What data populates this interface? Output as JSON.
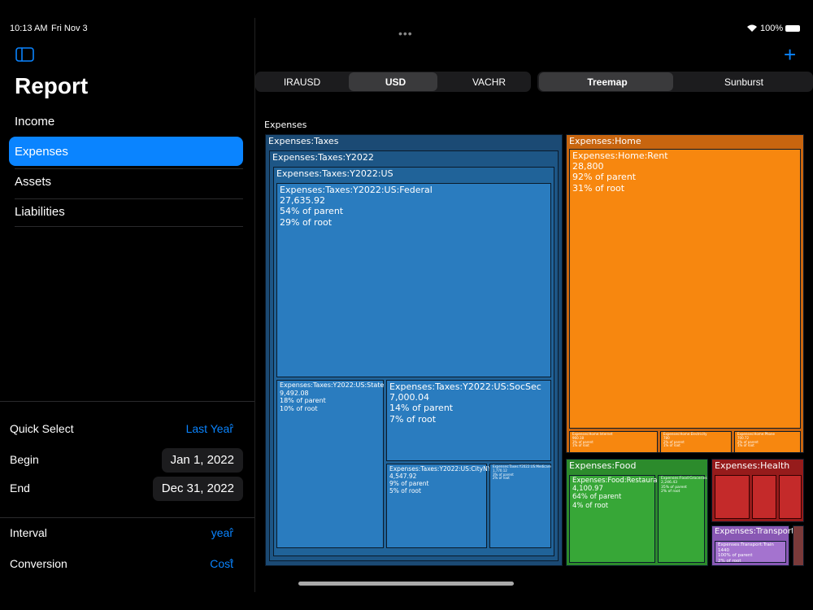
{
  "status": {
    "time": "10:13 AM",
    "date": "Fri Nov 3",
    "battery": "100%"
  },
  "sidebar": {
    "title": "Report",
    "items": [
      "Income",
      "Expenses",
      "Assets",
      "Liabilities"
    ],
    "settings": [
      {
        "label": "Quick Select",
        "value": "Last Year"
      },
      {
        "label": "Begin",
        "value": "Jan 1, 2022"
      },
      {
        "label": "End",
        "value": "Dec 31, 2022"
      },
      {
        "label": "Interval",
        "value": "year"
      },
      {
        "label": "Conversion",
        "value": "Cost"
      }
    ]
  },
  "currencies": [
    "IRAUSD",
    "USD",
    "VACHR"
  ],
  "views": [
    "Treemap",
    "Sunburst"
  ],
  "treemap": {
    "root": "Expenses",
    "nodes": [
      {
        "label": "Expenses:Taxes",
        "lines": []
      },
      {
        "label": "Expenses:Taxes:Y2022",
        "lines": []
      },
      {
        "label": "Expenses:Taxes:Y2022:US",
        "lines": []
      },
      {
        "label": "Expenses:Taxes:Y2022:US:Federal",
        "lines": [
          "27,635.92",
          "54% of parent",
          "29% of root"
        ]
      },
      {
        "label": "Expenses:Taxes:Y2022:US:State",
        "lines": [
          "9,492.08",
          "18% of parent",
          "10% of root"
        ]
      },
      {
        "label": "Expenses:Taxes:Y2022:US:SocSec",
        "lines": [
          "7,000.04",
          "14% of parent",
          "7% of root"
        ]
      },
      {
        "label": "Expenses:Taxes:Y2022:US:CityNYC",
        "lines": [
          "4,547.92",
          "9% of parent",
          "5% of root"
        ]
      },
      {
        "label": "Expenses:Taxes:Y2022:US:Medicare",
        "lines": [
          "1,770.12",
          "3% of parent",
          "2% of root"
        ]
      },
      {
        "label": "Expenses:Home",
        "lines": []
      },
      {
        "label": "Expenses:Home:Rent",
        "lines": [
          "28,800",
          "92% of parent",
          "31% of root"
        ]
      },
      {
        "label": "Expenses:Home:Internet",
        "lines": [
          "960.18",
          "3% of parent",
          "1% of root"
        ]
      },
      {
        "label": "Expenses:Home:Electricity",
        "lines": [
          "780",
          "2% of parent",
          "1% of root"
        ]
      },
      {
        "label": "Expenses:Home:Phone",
        "lines": [
          "700.72",
          "2% of parent",
          "1% of root"
        ]
      },
      {
        "label": "Expenses:Food",
        "lines": []
      },
      {
        "label": "Expenses:Food:Restaurant",
        "lines": [
          "4,100.97",
          "64% of parent",
          "4% of root"
        ]
      },
      {
        "label": "Expenses:Food:Groceries",
        "lines": [
          "2,246.43",
          "35% of parent",
          "2% of root"
        ]
      },
      {
        "label": "Expenses:Health",
        "lines": []
      },
      {
        "label": "Expenses:Transport",
        "lines": []
      },
      {
        "label": "Expenses:Transport:Train",
        "lines": [
          "1440",
          "100% of parent",
          "2% of root"
        ]
      }
    ]
  }
}
